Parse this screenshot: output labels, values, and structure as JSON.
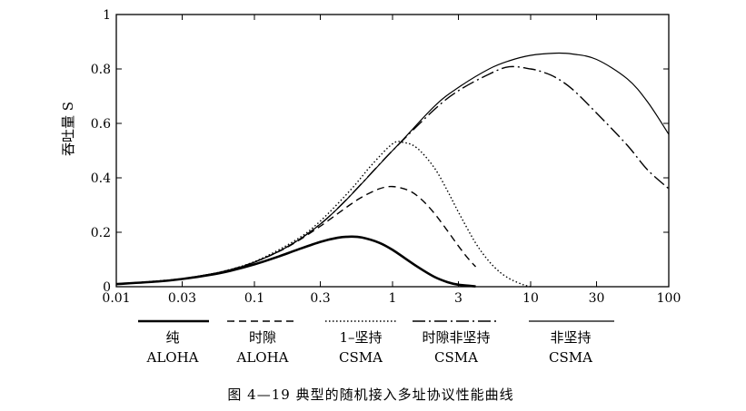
{
  "chart_data": {
    "type": "line",
    "ylabel": "吞吐量 S",
    "ylim": [
      0,
      1
    ],
    "x_scale": "log",
    "xlim": [
      0.01,
      100
    ],
    "x_ticks": [
      {
        "value": 0.01,
        "label": "0.01"
      },
      {
        "value": 0.03,
        "label": "0.03"
      },
      {
        "value": 0.1,
        "label": "0.1"
      },
      {
        "value": 0.3,
        "label": "0.3"
      },
      {
        "value": 1,
        "label": "1"
      },
      {
        "value": 3,
        "label": "3"
      },
      {
        "value": 10,
        "label": "10"
      },
      {
        "value": 30,
        "label": "30"
      },
      {
        "value": 100,
        "label": "100"
      }
    ],
    "y_ticks": [
      {
        "value": 0,
        "label": "0"
      },
      {
        "value": 0.2,
        "label": "0.2"
      },
      {
        "value": 0.4,
        "label": "0.4"
      },
      {
        "value": 0.6,
        "label": "0.6"
      },
      {
        "value": 0.8,
        "label": "0.8"
      },
      {
        "value": 1,
        "label": "1"
      }
    ],
    "series": [
      {
        "name": "纯 ALOHA",
        "label_line1": "纯",
        "label_line2": "ALOHA",
        "style": "solid-thick",
        "x": [
          0.01,
          0.02,
          0.03,
          0.05,
          0.07,
          0.1,
          0.15,
          0.2,
          0.3,
          0.4,
          0.5,
          0.6,
          0.8,
          1,
          1.5,
          2,
          2.5,
          3,
          4
        ],
        "y": [
          0.0098,
          0.0192,
          0.0283,
          0.0452,
          0.0608,
          0.0819,
          0.1111,
          0.134,
          0.1646,
          0.1797,
          0.1839,
          0.1807,
          0.1616,
          0.1353,
          0.0747,
          0.0366,
          0.0168,
          0.0074,
          0.0013
        ]
      },
      {
        "name": "时隙 ALOHA",
        "label_line1": "时隙",
        "label_line2": "ALOHA",
        "style": "dashed",
        "x": [
          0.01,
          0.02,
          0.03,
          0.05,
          0.07,
          0.1,
          0.15,
          0.2,
          0.3,
          0.4,
          0.5,
          0.6,
          0.8,
          1,
          1.3,
          1.6,
          2,
          2.5,
          3,
          3.5,
          4
        ],
        "y": [
          0.0099,
          0.0196,
          0.0291,
          0.0476,
          0.0653,
          0.0905,
          0.1291,
          0.1637,
          0.2222,
          0.2681,
          0.3033,
          0.3293,
          0.3595,
          0.3679,
          0.3542,
          0.3231,
          0.2707,
          0.2052,
          0.1494,
          0.1057,
          0.0733
        ]
      },
      {
        "name": "1-坚持 CSMA",
        "label_line1": "1–坚持",
        "label_line2": "CSMA",
        "style": "dotted",
        "x": [
          0.01,
          0.03,
          0.05,
          0.1,
          0.2,
          0.3,
          0.5,
          0.7,
          1,
          1.2,
          1.5,
          2,
          2.5,
          3,
          4,
          5,
          6,
          7,
          8,
          9,
          10
        ],
        "y": [
          0.0099,
          0.0291,
          0.0476,
          0.092,
          0.172,
          0.241,
          0.357,
          0.445,
          0.525,
          0.53,
          0.51,
          0.438,
          0.352,
          0.274,
          0.16,
          0.093,
          0.053,
          0.03,
          0.016,
          0.006,
          0.0
        ]
      },
      {
        "name": "时隙非坚持 CSMA",
        "label_line1": "时隙非坚持",
        "label_line2": "CSMA",
        "style": "dash-dot",
        "x": [
          0.01,
          0.03,
          0.1,
          0.3,
          1,
          2,
          3,
          5,
          7,
          10,
          12,
          15,
          20,
          30,
          50,
          70,
          100
        ],
        "y": [
          0.0099,
          0.029,
          0.09,
          0.23,
          0.5,
          0.65,
          0.72,
          0.781,
          0.808,
          0.8,
          0.79,
          0.77,
          0.726,
          0.638,
          0.52,
          0.43,
          0.36
        ]
      },
      {
        "name": "非坚持 CSMA",
        "label_line1": "非坚持",
        "label_line2": "CSMA",
        "style": "solid-thin",
        "x": [
          0.01,
          0.03,
          0.1,
          0.3,
          1,
          2,
          3,
          5,
          7,
          10,
          15,
          20,
          30,
          50,
          70,
          100
        ],
        "y": [
          0.0099,
          0.029,
          0.09,
          0.23,
          0.5,
          0.662,
          0.732,
          0.8,
          0.83,
          0.85,
          0.858,
          0.855,
          0.835,
          0.764,
          0.68,
          0.56
        ]
      }
    ]
  },
  "caption": "图 4—19   典型的随机接入多址协议性能曲线"
}
